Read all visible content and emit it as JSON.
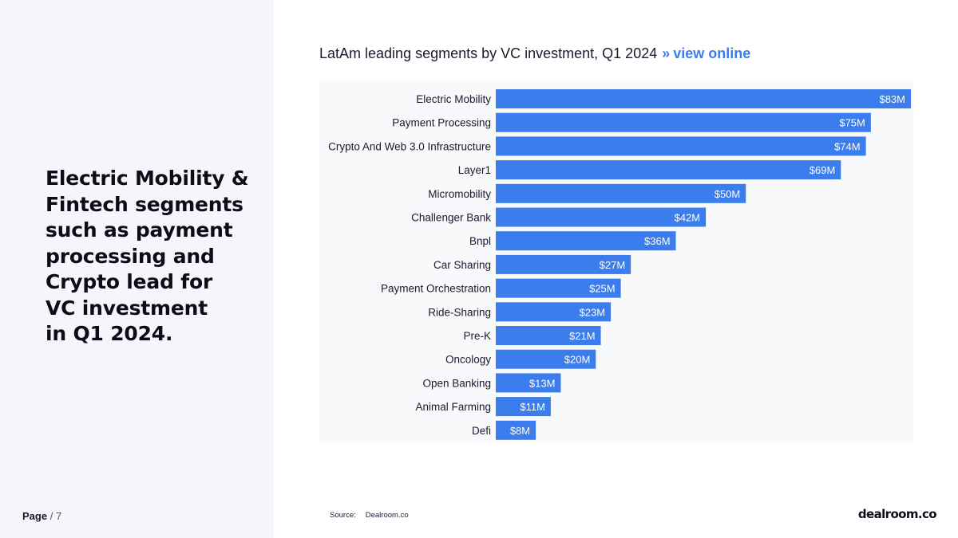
{
  "headline": "Electric Mobility &\nFintech segments\nsuch as payment\nprocessing and\nCrypto lead for\nVC investment\nin Q1 2024.",
  "page": {
    "label": "Page",
    "separator": "/",
    "number": "7"
  },
  "chart_title": {
    "text": "LatAm leading segments by VC investment, Q1 2024",
    "chevron": "»",
    "link": "view online"
  },
  "source": {
    "label": "Source:",
    "value": "Dealroom.co"
  },
  "logo": "dealroom.co",
  "colors": {
    "bar": "#3b7ded",
    "accent": "#3b7ded",
    "panel": "#f4f6fb"
  },
  "chart_data": {
    "type": "bar",
    "orientation": "horizontal",
    "title": "LatAm leading segments by VC investment, Q1 2024",
    "xlabel": "",
    "ylabel": "",
    "unit": "$M",
    "xlim": [
      0,
      83
    ],
    "categories": [
      "Electric Mobility",
      "Payment Processing",
      "Crypto And Web 3.0 Infrastructure",
      "Layer1",
      "Micromobility",
      "Challenger Bank",
      "Bnpl",
      "Car Sharing",
      "Payment Orchestration",
      "Ride-Sharing",
      "Pre-K",
      "Oncology",
      "Open Banking",
      "Animal Farming",
      "Defi"
    ],
    "values": [
      83,
      75,
      74,
      69,
      50,
      42,
      36,
      27,
      25,
      23,
      21,
      20,
      13,
      11,
      8
    ],
    "value_labels": [
      "$83M",
      "$75M",
      "$74M",
      "$69M",
      "$50M",
      "$42M",
      "$36M",
      "$27M",
      "$25M",
      "$23M",
      "$21M",
      "$20M",
      "$13M",
      "$11M",
      "$8M"
    ]
  }
}
